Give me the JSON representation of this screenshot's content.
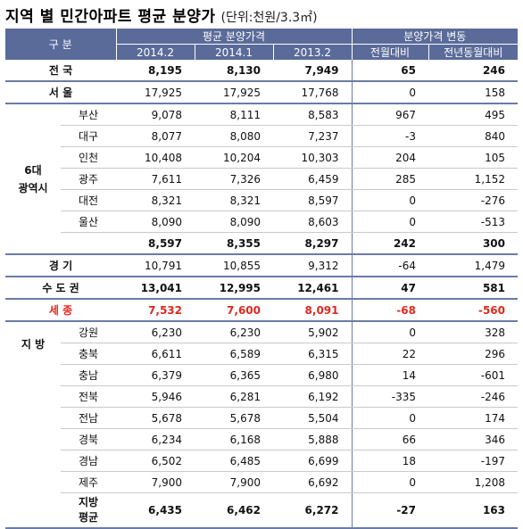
{
  "title": {
    "main": "지역 별 민간아파트 평균 분양가",
    "unit": "(단위:천원/3.3㎡)"
  },
  "header": {
    "category": "구 분",
    "price_group": "평균 분양가격",
    "change_group": "분양가격 변동",
    "col_2014_2": "2014.2",
    "col_2014_1": "2014.1",
    "col_2013_2": "2013.2",
    "col_mom": "전월대비",
    "col_yoy": "전년동월대비"
  },
  "rows": {
    "national": {
      "label": "전 국",
      "v1": "8,195",
      "v2": "8,130",
      "v3": "7,949",
      "mom": "65",
      "yoy": "246"
    },
    "seoul": {
      "label": "서 울",
      "v1": "17,925",
      "v2": "17,925",
      "v3": "17,768",
      "mom": "0",
      "yoy": "158"
    },
    "metro_label": "6대\n광역시",
    "metro": [
      {
        "label": "부산",
        "v1": "9,078",
        "v2": "8,111",
        "v3": "8,583",
        "mom": "967",
        "yoy": "495"
      },
      {
        "label": "대구",
        "v1": "8,077",
        "v2": "8,080",
        "v3": "7,237",
        "mom": "-3",
        "yoy": "840"
      },
      {
        "label": "인천",
        "v1": "10,408",
        "v2": "10,204",
        "v3": "10,303",
        "mom": "204",
        "yoy": "105"
      },
      {
        "label": "광주",
        "v1": "7,611",
        "v2": "7,326",
        "v3": "6,459",
        "mom": "285",
        "yoy": "1,152"
      },
      {
        "label": "대전",
        "v1": "8,321",
        "v2": "8,321",
        "v3": "8,597",
        "mom": "0",
        "yoy": "-276"
      },
      {
        "label": "울산",
        "v1": "8,090",
        "v2": "8,090",
        "v3": "8,603",
        "mom": "0",
        "yoy": "-513"
      }
    ],
    "metro_subtotal": {
      "v1": "8,597",
      "v2": "8,355",
      "v3": "8,297",
      "mom": "242",
      "yoy": "300"
    },
    "gyeonggi": {
      "label": "경 기",
      "v1": "10,791",
      "v2": "10,855",
      "v3": "9,312",
      "mom": "-64",
      "yoy": "1,479"
    },
    "capital": {
      "label": "수 도 권",
      "v1": "13,041",
      "v2": "12,995",
      "v3": "12,461",
      "mom": "47",
      "yoy": "581"
    },
    "sejong": {
      "label": "세 종",
      "v1": "7,532",
      "v2": "7,600",
      "v3": "8,091",
      "mom": "-68",
      "yoy": "-560"
    },
    "local_label": "지 방",
    "local": [
      {
        "label": "강원",
        "v1": "6,230",
        "v2": "6,230",
        "v3": "5,902",
        "mom": "0",
        "yoy": "328"
      },
      {
        "label": "충북",
        "v1": "6,611",
        "v2": "6,589",
        "v3": "6,315",
        "mom": "22",
        "yoy": "296"
      },
      {
        "label": "충남",
        "v1": "6,379",
        "v2": "6,365",
        "v3": "6,980",
        "mom": "14",
        "yoy": "-601"
      },
      {
        "label": "전북",
        "v1": "5,946",
        "v2": "6,281",
        "v3": "6,192",
        "mom": "-335",
        "yoy": "-246"
      },
      {
        "label": "전남",
        "v1": "5,678",
        "v2": "5,678",
        "v3": "5,504",
        "mom": "0",
        "yoy": "174"
      },
      {
        "label": "경북",
        "v1": "6,234",
        "v2": "6,168",
        "v3": "5,888",
        "mom": "66",
        "yoy": "346"
      },
      {
        "label": "경남",
        "v1": "6,502",
        "v2": "6,485",
        "v3": "6,699",
        "mom": "18",
        "yoy": "-197"
      },
      {
        "label": "제주",
        "v1": "7,900",
        "v2": "7,900",
        "v3": "6,692",
        "mom": "0",
        "yoy": "1,208"
      }
    ],
    "local_avg": {
      "label": "지방\n평균",
      "v1": "6,435",
      "v2": "6,462",
      "v3": "6,272",
      "mom": "-27",
      "yoy": "163"
    }
  },
  "colors": {
    "header_bg": "#5a6b9a",
    "highlight_red": "#e0281c",
    "rule": "#6b7ba8"
  }
}
